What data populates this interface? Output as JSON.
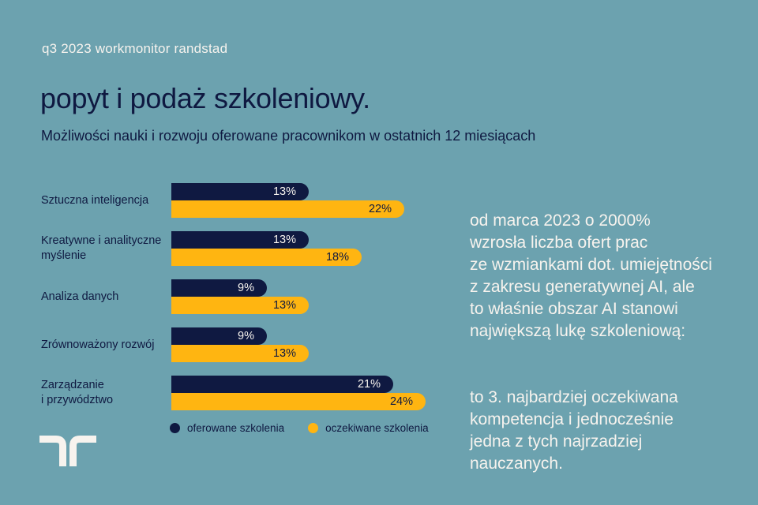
{
  "colors": {
    "background": "#6CA2AF",
    "navy": "#0F1941",
    "yellow": "#FFB511",
    "cream": "#F7F3EE"
  },
  "header": {
    "eyebrow": "q3 2023 workmonitor randstad",
    "title": "popyt i podaż szkoleniowy.",
    "subtitle": "Możliwości nauki i rozwoju oferowane pracownikom w ostatnich 12 miesiącach"
  },
  "chart_data": {
    "type": "bar",
    "orientation": "horizontal",
    "unit": "%",
    "xlim": [
      0,
      25
    ],
    "grid": false,
    "value_labels": true,
    "legend_position": "bottom",
    "categories": [
      "Sztuczna inteligencja",
      "Kreatywne i analityczne\nmyślenie",
      "Analiza danych",
      "Zrównoważony rozwój",
      "Zarządzanie\ni przywództwo"
    ],
    "series": [
      {
        "name": "oferowane szkolenia",
        "color": "#0F1941",
        "label_color": "#F7F3EE",
        "values": [
          13,
          13,
          9,
          9,
          21
        ]
      },
      {
        "name": "oczekiwane szkolenia",
        "color": "#FFB511",
        "label_color": "#0F1941",
        "values": [
          22,
          18,
          13,
          13,
          24
        ]
      }
    ]
  },
  "aside": {
    "paragraphs": [
      [
        "od marca 2023 o 2000%",
        "wzrosła liczba ofert prac",
        "ze wzmiankami dot. umiejętności",
        "z zakresu generatywnej AI, ale",
        "to właśnie obszar AI stanowi",
        "największą lukę szkoleniową:"
      ],
      [
        "to 3. najbardziej oczekiwana",
        "kompetencja i jednocześnie",
        "jedna z tych najrzadziej",
        "nauczanych."
      ]
    ]
  },
  "logo": {
    "name": "randstad-logo"
  }
}
